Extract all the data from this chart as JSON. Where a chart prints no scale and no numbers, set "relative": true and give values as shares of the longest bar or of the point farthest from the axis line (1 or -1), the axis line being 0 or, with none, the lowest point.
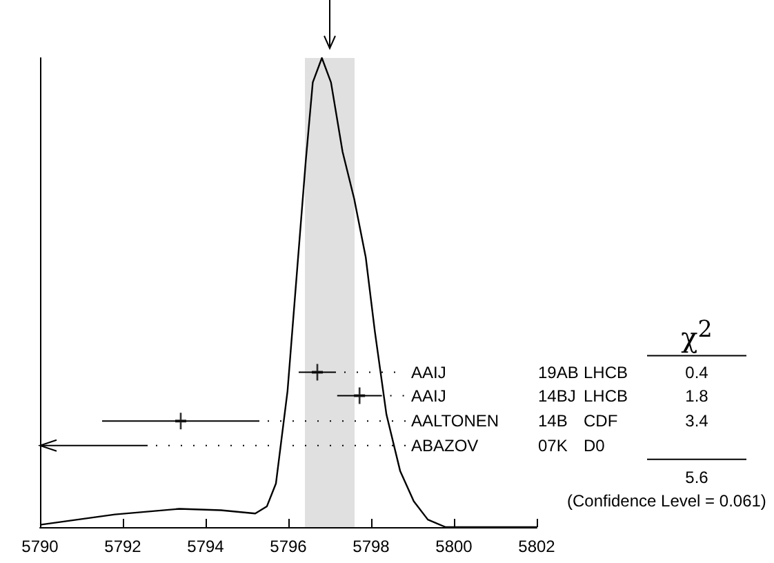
{
  "chart_data": {
    "type": "line",
    "relative": true,
    "xlim": [
      5790,
      5802
    ],
    "xticks": [
      5790,
      5792,
      5794,
      5796,
      5798,
      5800,
      5802
    ],
    "tick_labels": "x",
    "grid": false,
    "legend": false,
    "bands": [
      {
        "axis": "x",
        "from": 5796.4,
        "to": 5797.6,
        "color": "#e0e0e0"
      }
    ],
    "series": [
      {
        "color": "#000000",
        "marker": "none",
        "x": [
          5790,
          5791.81,
          5793.37,
          5794.37,
          5795.2,
          5795.48,
          5795.7,
          5795.98,
          5796.2,
          5796.42,
          5796.59,
          5796.81,
          5797.03,
          5797.31,
          5797.59,
          5797.87,
          5798.09,
          5798.37,
          5798.7,
          5799.03,
          5799.37,
          5799.8,
          5802
        ],
        "values": [
          0.005,
          0.027,
          0.039,
          0.036,
          0.029,
          0.044,
          0.093,
          0.29,
          0.535,
          0.78,
          0.948,
          1,
          0.948,
          0.8,
          0.7,
          0.575,
          0.417,
          0.24,
          0.12,
          0.055,
          0.016,
          0,
          0
        ]
      },
      {
        "type": "scatter",
        "color": "#000000",
        "marker": "cross",
        "x": [
          5796.7,
          5797.72,
          5793.4
        ],
        "values": [
          0.33,
          0.28,
          0.226
        ],
        "xerrors": [
          0.45,
          0.54,
          1.9
        ]
      }
    ],
    "annotations": [
      "AAIJ",
      "19AB",
      "LHCB",
      "0.4",
      "AAIJ",
      "14BJ",
      "LHCB",
      "1.8",
      "AALTONEN",
      "14B",
      "CDF",
      "3.4",
      "ABAZOV",
      "07K",
      "D0",
      "χ$^{2}$",
      "5.6",
      "(Confidence Level = 0.061)"
    ]
  }
}
